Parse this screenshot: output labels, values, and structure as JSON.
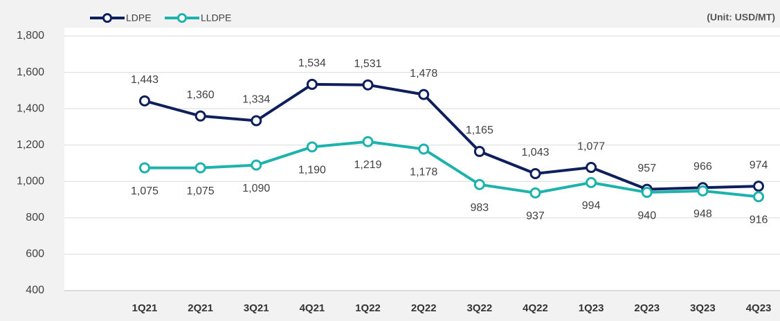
{
  "chart_data": {
    "type": "line",
    "unit_note": "(Unit: USD/MT)",
    "categories": [
      "1Q21",
      "2Q21",
      "3Q21",
      "4Q21",
      "1Q22",
      "2Q22",
      "3Q22",
      "4Q22",
      "1Q23",
      "2Q23",
      "3Q23",
      "4Q23"
    ],
    "series": [
      {
        "name": "LDPE",
        "color": "#0e1f5b",
        "values": [
          1443,
          1360,
          1334,
          1534,
          1531,
          1478,
          1165,
          1043,
          1077,
          957,
          966,
          974
        ],
        "value_labels": [
          "1,443",
          "1,360",
          "1,334",
          "1,534",
          "1,531",
          "1,478",
          "1,165",
          "1,043",
          "1,077",
          "957",
          "966",
          "974"
        ]
      },
      {
        "name": "LLDPE",
        "color": "#1db3ac",
        "values": [
          1075,
          1075,
          1090,
          1190,
          1219,
          1178,
          983,
          937,
          994,
          940,
          948,
          916
        ],
        "value_labels": [
          "1,075",
          "1,075",
          "1,090",
          "1,190",
          "1,219",
          "1,178",
          "983",
          "937",
          "994",
          "940",
          "948",
          "916"
        ]
      }
    ],
    "ylim": [
      400,
      1800
    ],
    "yticks": [
      400,
      600,
      800,
      {
        "value": 1000,
        "label": "1,000"
      },
      {
        "value": 1200,
        "label": "1,200"
      },
      {
        "value": 1400,
        "label": "1,400"
      },
      {
        "value": 1600,
        "label": "1,600"
      },
      {
        "value": 1800,
        "label": "1,800"
      }
    ],
    "grid": true,
    "legend": "top-left"
  }
}
